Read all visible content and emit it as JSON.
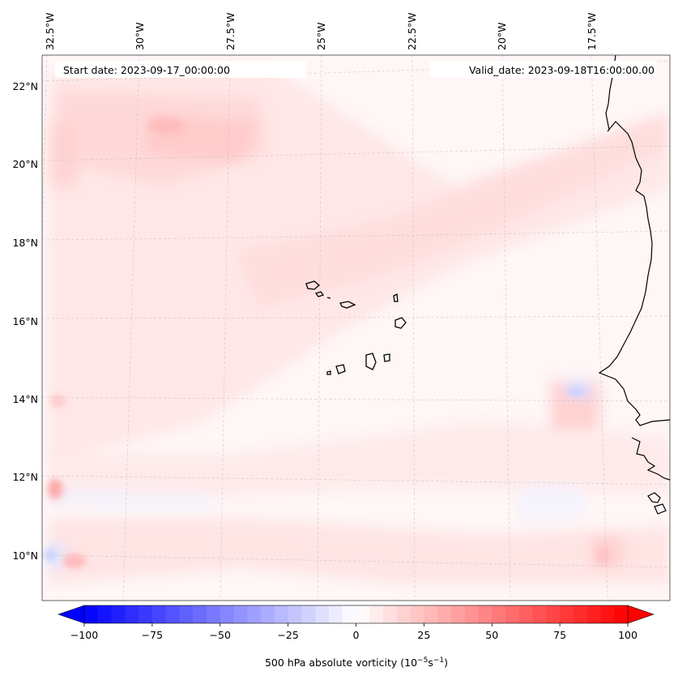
{
  "map": {
    "longitude_labels": [
      "32.5°W",
      "30°W",
      "27.5°W",
      "25°W",
      "22.5°W",
      "20°W",
      "17.5°W"
    ],
    "latitude_labels": [
      "22°N",
      "20°N",
      "18°N",
      "16°N",
      "14°N",
      "12°N",
      "10°N"
    ],
    "start_date": "Start date: 2023-09-17_00:00:00",
    "valid_date": "Valid_date: 2023-09-18T16:00:00.00",
    "field_colors": {
      "positive": "#ff0000",
      "negative": "#0000ff",
      "neutral": "#ffffff"
    }
  },
  "colorbar": {
    "min": -100,
    "max": 100,
    "tick_labels": [
      "−100",
      "−75",
      "−50",
      "−25",
      "0",
      "25",
      "50",
      "75",
      "100"
    ],
    "label_text": "500 hPa absolute vorticity (10",
    "label_exp1": "−5",
    "label_mid": "s",
    "label_exp2": "−1",
    "label_close": ")",
    "extend": "both",
    "cmap": "bwr"
  }
}
